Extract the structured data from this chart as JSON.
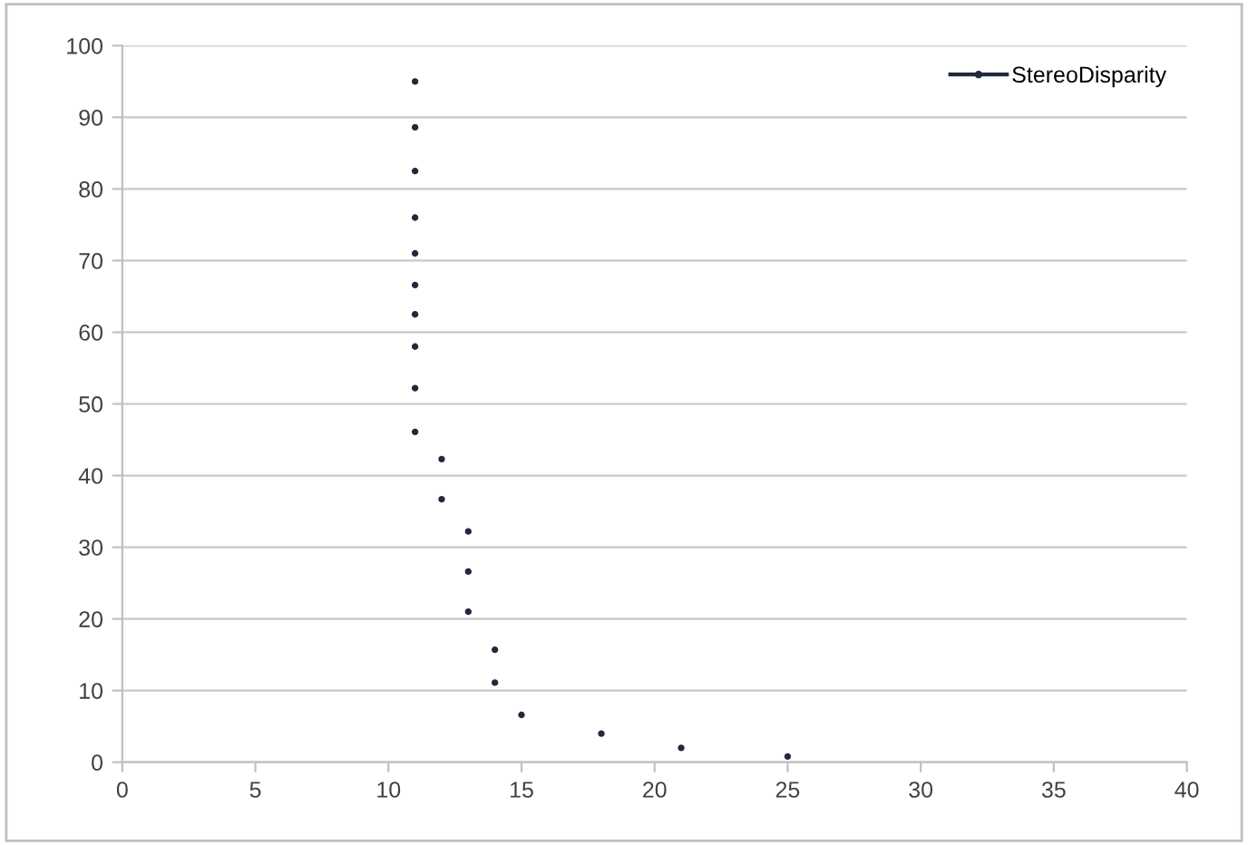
{
  "chart_data": {
    "type": "scatter",
    "series": [
      {
        "name": "StereoDisparity",
        "color": "#1f2a3c",
        "x": [
          11,
          11,
          11,
          11,
          11,
          11,
          11,
          11,
          11,
          11,
          12,
          12,
          13,
          13,
          13,
          14,
          14,
          15,
          18,
          21,
          25
        ],
        "values": [
          95,
          88.6,
          82.5,
          76,
          71,
          66.6,
          62.5,
          58,
          52.2,
          46.1,
          42.3,
          36.7,
          32.2,
          26.6,
          21,
          15.7,
          11.1,
          6.6,
          4,
          2,
          0.8
        ]
      }
    ],
    "xlim": [
      0,
      40
    ],
    "xticks": [
      0,
      5,
      10,
      15,
      20,
      25,
      30,
      35,
      40
    ],
    "ylim": [
      0,
      100
    ],
    "yticks": [
      0,
      10,
      20,
      30,
      40,
      50,
      60,
      70,
      80,
      90,
      100
    ],
    "grid": "y",
    "legend": "top right",
    "marker": "circle"
  }
}
